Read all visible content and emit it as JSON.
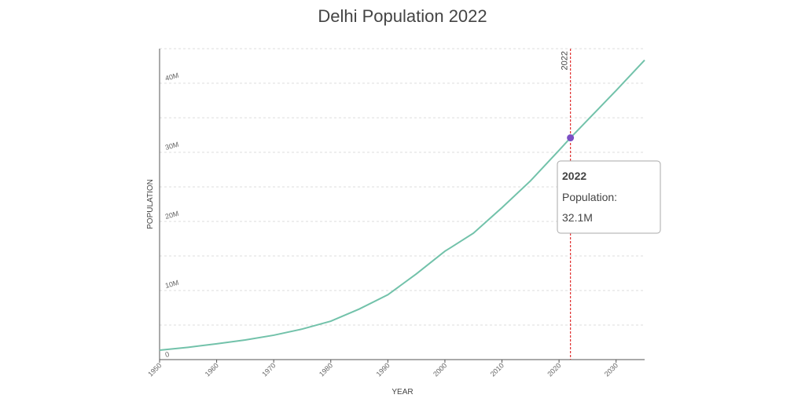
{
  "chart_data": {
    "type": "line",
    "title": "Delhi Population 2022",
    "x_label": "YEAR",
    "y_label": "POPULATION",
    "x": [
      1950,
      1955,
      1960,
      1965,
      1970,
      1975,
      1980,
      1985,
      1990,
      1995,
      2000,
      2001,
      2005,
      2010,
      2015,
      2020,
      2022,
      2025,
      2030,
      2035
    ],
    "series": [
      {
        "name": "Population",
        "color": "#72c2aa",
        "values": [
          1369000,
          1782000,
          2283000,
          2845000,
          3531000,
          4426000,
          5559000,
          7325000,
          9384000,
          12407000,
          15692000,
          16200000,
          18300000,
          21990000,
          25870000,
          30290000,
          32100000,
          34670000,
          38940000,
          43350000
        ]
      }
    ],
    "xlim": [
      1950,
      2035
    ],
    "xticks": [
      1950,
      1960,
      1970,
      1980,
      1990,
      2000,
      2010,
      2020,
      2030
    ],
    "ylim": [
      0,
      45000000
    ],
    "yticks": [
      0,
      {
        "value": 10000000,
        "label": "10M"
      },
      {
        "value": 20000000,
        "label": "20M"
      },
      {
        "value": 30000000,
        "label": "30M"
      },
      {
        "value": 40000000,
        "label": "40M"
      }
    ],
    "minor_yticks": [
      5000000,
      15000000,
      25000000,
      35000000,
      45000000
    ],
    "grid": true,
    "marker": {
      "x": 2022,
      "value": 32100000,
      "value_label": "32.1M",
      "text": "Population:",
      "line_color": "#e03030",
      "color": "#7b4fc4"
    }
  }
}
